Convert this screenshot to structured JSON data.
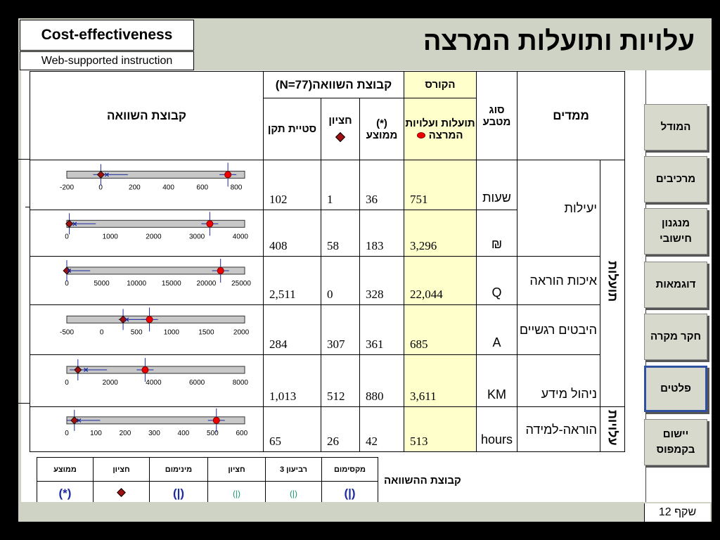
{
  "header": {
    "box1": "Cost-effectiveness",
    "box2": "Web-supported instruction",
    "title": "עלויות ותועלות המרצה"
  },
  "table": {
    "col_comparison": "קבוצת השוואה",
    "col_group_header": "קבוצת השוואה(N=77)",
    "col_course": "הקורס",
    "col_course_sub": "תועלות ועלויות המרצה",
    "col_type": "סוג מטבע",
    "col_measures": "ממדים",
    "col_mean": "(*) ממוצע",
    "col_median": "חציון",
    "col_sd": "סטיית תקן",
    "group_benefits": "תועלות",
    "group_costs": "עלויות",
    "rows": [
      {
        "measure": "יעילות",
        "unit": "שעות",
        "course": "751",
        "mean": "36",
        "median": "1",
        "sd": "102"
      },
      {
        "measure": "",
        "unit": "₪",
        "course": "3,296",
        "mean": "183",
        "median": "58",
        "sd": "408"
      },
      {
        "measure": "איכות הוראה",
        "unit": "Q",
        "course": "22,044",
        "mean": "328",
        "median": "0",
        "sd": "2,511"
      },
      {
        "measure": "היבטים רגשיים",
        "unit": "A",
        "course": "685",
        "mean": "361",
        "median": "307",
        "sd": "284"
      },
      {
        "measure": "ניהול מידע",
        "unit": "KM",
        "course": "3,611",
        "mean": "880",
        "median": "512",
        "sd": "1,013"
      },
      {
        "measure": "הוראה-למידה",
        "unit": "hours",
        "course": "513",
        "mean": "42",
        "median": "26",
        "sd": "65"
      }
    ]
  },
  "chart_data": [
    {
      "type": "box",
      "ticks": [
        "-200",
        "0",
        "200",
        "400",
        "600",
        "800"
      ],
      "xlim": [
        -200,
        850
      ],
      "course": 751,
      "mean": 36,
      "median": 1
    },
    {
      "type": "box",
      "ticks": [
        "0",
        "1000",
        "2000",
        "3000",
        "4000"
      ],
      "xlim": [
        0,
        4100
      ],
      "course": 3296,
      "mean": 183,
      "median": 58
    },
    {
      "type": "box",
      "ticks": [
        "0",
        "5000",
        "10000",
        "15000",
        "20000",
        "25000"
      ],
      "xlim": [
        0,
        25500
      ],
      "course": 22044,
      "mean": 328,
      "median": 0
    },
    {
      "type": "box",
      "ticks": [
        "-500",
        "0",
        "500",
        "1000",
        "1500",
        "2000"
      ],
      "xlim": [
        -500,
        2050
      ],
      "course": 685,
      "mean": 361,
      "median": 307
    },
    {
      "type": "box",
      "ticks": [
        "0",
        "2000",
        "4000",
        "6000",
        "8000"
      ],
      "xlim": [
        0,
        8200
      ],
      "course": 3611,
      "mean": 880,
      "median": 512
    },
    {
      "type": "box",
      "ticks": [
        "0",
        "100",
        "200",
        "300",
        "400",
        "500",
        "600"
      ],
      "xlim": [
        0,
        610
      ],
      "course": 513,
      "mean": 42,
      "median": 26
    }
  ],
  "nav": [
    "המודל",
    "מרכיבים",
    "מנגנון חישובי",
    "דוגמאות",
    "חקר מקרה",
    "פלטים",
    "יישום בקמפוס"
  ],
  "legend": {
    "headers": [
      "ממוצע",
      "חציון",
      "מינימום",
      "חציון",
      "רביעון 3",
      "מקסימום"
    ],
    "symbols": [
      "(*)",
      "",
      "(|)",
      "(|)",
      "(|)",
      "(|)"
    ],
    "label": "קבוצת ההשוואה"
  },
  "footer": {
    "slide": "שקף 12"
  },
  "colors": {
    "course_bg": "#ffffcc",
    "slide_bg": "#cfd3c5",
    "active_nav": "#3050a0"
  }
}
